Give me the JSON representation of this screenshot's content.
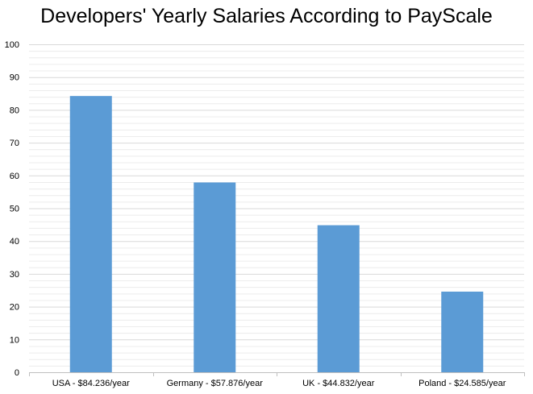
{
  "chart_data": {
    "type": "bar",
    "title": "Developers' Yearly Salaries According to PayScale",
    "categories": [
      "USA - $84.236/year",
      "Germany - $57.876/year",
      "UK - $44.832/year",
      "Poland - $24.585/year"
    ],
    "values": [
      84.236,
      57.876,
      44.832,
      24.585
    ],
    "xlabel": "",
    "ylabel": "",
    "ylim": [
      0,
      100
    ],
    "yticks": [
      0,
      10,
      20,
      30,
      40,
      50,
      60,
      70,
      80,
      90,
      100
    ],
    "minor_grid_step": 2,
    "grid": true,
    "legend": "none",
    "bar_color": "#5b9bd5",
    "grid_color": "#d9d9d9"
  }
}
